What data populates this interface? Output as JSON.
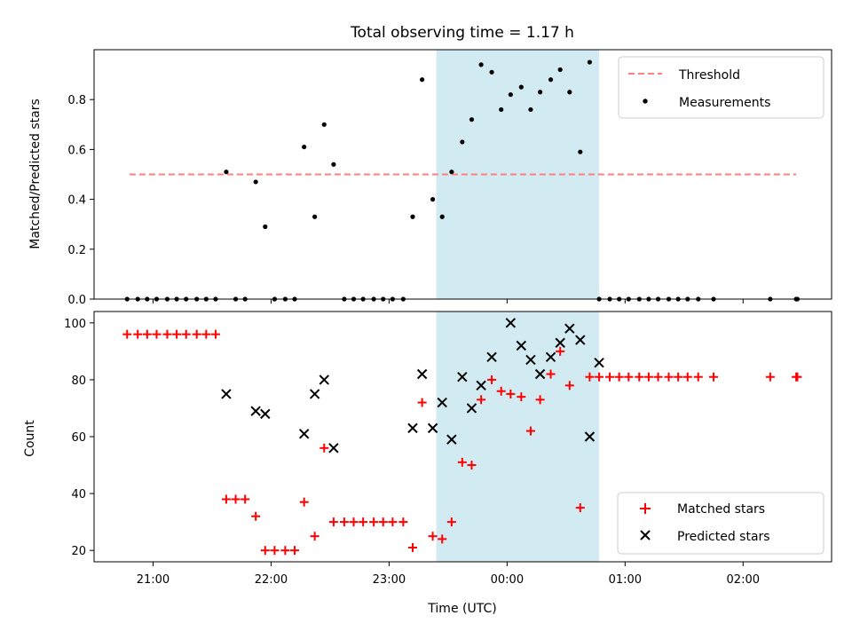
{
  "chart_data": [
    {
      "type": "scatter",
      "title": "Total observing time = 1.17 h",
      "ylabel": "Matched/Predicted stars",
      "xlabel": "",
      "ylim": [
        0,
        1.0
      ],
      "y_ticks": [
        "0.0",
        "0.2",
        "0.4",
        "0.6",
        "0.8"
      ],
      "y_tick_values": [
        0.0,
        0.2,
        0.4,
        0.6,
        0.8
      ],
      "x_range_hours": [
        20.5,
        26.75
      ],
      "x_tick_hours": [
        21,
        22,
        23,
        24,
        25,
        26
      ],
      "legend_position": "top-right",
      "highlight_span_hours": [
        23.4,
        24.78
      ],
      "highlight_color": "#add8e6",
      "threshold": {
        "name": "Threshold",
        "value": 0.5,
        "x_from": 20.8,
        "x_to": 26.45,
        "color": "#ff7f7f",
        "style": "dashed"
      },
      "series": [
        {
          "name": "Measurements",
          "color": "#000000",
          "marker": "dot",
          "x": [
            20.78,
            20.87,
            20.95,
            21.03,
            21.12,
            21.2,
            21.28,
            21.37,
            21.45,
            21.53,
            21.62,
            21.7,
            21.78,
            21.87,
            21.95,
            22.03,
            22.12,
            22.2,
            22.28,
            22.37,
            22.45,
            22.53,
            22.62,
            22.7,
            22.78,
            22.87,
            22.95,
            23.03,
            23.12,
            23.2,
            23.28,
            23.37,
            23.45,
            23.53,
            23.62,
            23.7,
            23.78,
            23.87,
            23.95,
            24.03,
            24.12,
            24.2,
            24.28,
            24.37,
            24.45,
            24.53,
            24.62,
            24.7,
            24.78,
            24.87,
            24.95,
            25.03,
            25.12,
            25.2,
            25.28,
            25.37,
            25.45,
            25.53,
            25.62,
            25.75,
            26.23,
            26.45,
            26.46
          ],
          "y": [
            0,
            0,
            0,
            0,
            0,
            0,
            0,
            0,
            0,
            0,
            0.51,
            0,
            0,
            0.47,
            0.29,
            0,
            0,
            0,
            0.61,
            0.33,
            0.7,
            0.54,
            0,
            0,
            0,
            0,
            0,
            0,
            0,
            0.33,
            0.88,
            0.4,
            0.33,
            0.51,
            0.63,
            0.72,
            0.94,
            0.91,
            0.76,
            0.82,
            0.85,
            0.76,
            0.83,
            0.88,
            0.92,
            0.83,
            0.59,
            0.95,
            0,
            0,
            0,
            0,
            0,
            0,
            0,
            0,
            0,
            0,
            0,
            0,
            0,
            0,
            0
          ]
        }
      ]
    },
    {
      "type": "scatter",
      "title": "",
      "xlabel": "Time (UTC)",
      "ylabel": "Count",
      "ylim": [
        16,
        104
      ],
      "y_ticks": [
        "20",
        "40",
        "60",
        "80",
        "100"
      ],
      "y_tick_values": [
        20,
        40,
        60,
        80,
        100
      ],
      "x_range_hours": [
        20.5,
        26.75
      ],
      "x_tick_hours": [
        21,
        22,
        23,
        24,
        25,
        26
      ],
      "x_tick_labels": [
        "21:00",
        "22:00",
        "23:00",
        "00:00",
        "01:00",
        "02:00"
      ],
      "legend_position": "bottom-right",
      "highlight_span_hours": [
        23.4,
        24.78
      ],
      "highlight_color": "#add8e6",
      "series": [
        {
          "name": "Matched stars",
          "color": "#ff0000",
          "marker": "plus",
          "x": [
            20.78,
            20.87,
            20.95,
            21.03,
            21.12,
            21.2,
            21.28,
            21.37,
            21.45,
            21.53,
            21.62,
            21.7,
            21.78,
            21.87,
            21.95,
            22.03,
            22.12,
            22.2,
            22.28,
            22.37,
            22.45,
            22.53,
            22.62,
            22.7,
            22.78,
            22.87,
            22.95,
            23.03,
            23.12,
            23.2,
            23.28,
            23.37,
            23.45,
            23.53,
            23.62,
            23.7,
            23.78,
            23.87,
            23.95,
            24.03,
            24.12,
            24.2,
            24.28,
            24.37,
            24.45,
            24.53,
            24.62,
            24.7,
            24.78,
            24.87,
            24.95,
            25.03,
            25.12,
            25.2,
            25.28,
            25.37,
            25.45,
            25.53,
            25.62,
            25.75,
            26.23,
            26.45,
            26.46
          ],
          "y": [
            96,
            96,
            96,
            96,
            96,
            96,
            96,
            96,
            96,
            96,
            38,
            38,
            38,
            32,
            20,
            20,
            20,
            20,
            37,
            25,
            56,
            30,
            30,
            30,
            30,
            30,
            30,
            30,
            30,
            21,
            72,
            25,
            24,
            30,
            51,
            50,
            73,
            80,
            76,
            75,
            74,
            62,
            73,
            82,
            90,
            78,
            35,
            81,
            81,
            81,
            81,
            81,
            81,
            81,
            81,
            81,
            81,
            81,
            81,
            81,
            81,
            81,
            81
          ]
        },
        {
          "name": "Predicted stars",
          "color": "#000000",
          "marker": "x",
          "x": [
            21.62,
            21.87,
            21.95,
            22.28,
            22.37,
            22.45,
            22.53,
            23.2,
            23.28,
            23.37,
            23.45,
            23.53,
            23.62,
            23.7,
            23.78,
            23.87,
            24.03,
            24.12,
            24.2,
            24.28,
            24.37,
            24.45,
            24.53,
            24.62,
            24.7,
            24.78
          ],
          "y": [
            75,
            69,
            68,
            61,
            75,
            80,
            56,
            63,
            82,
            63,
            72,
            59,
            81,
            70,
            78,
            88,
            100,
            92,
            87,
            82,
            88,
            93,
            98,
            94,
            60,
            86
          ]
        }
      ]
    }
  ]
}
